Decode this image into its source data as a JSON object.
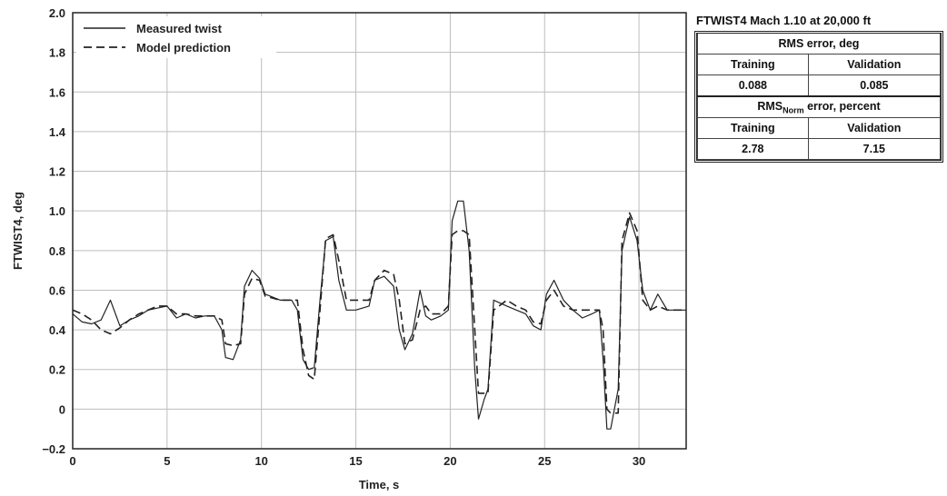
{
  "chart_data": {
    "type": "line",
    "xlabel": "Time, s",
    "ylabel": "FTWIST4, deg",
    "xlim": [
      0,
      32.5
    ],
    "ylim": [
      -0.2,
      2.0
    ],
    "x_ticks": [
      0,
      5,
      10,
      15,
      20,
      25,
      30
    ],
    "y_ticks": [
      2.0,
      1.8,
      1.6,
      1.4,
      1.2,
      1.0,
      0.8,
      0.6,
      0.4,
      0.2,
      0,
      -0.2
    ],
    "y_tick_labels": [
      "2.0",
      "1.8",
      "1.6",
      "1.4",
      "1.2",
      "1.0",
      "0.8",
      "0.6",
      "0.4",
      "0.2",
      "0",
      "−0.2"
    ],
    "x_tick_labels": [
      "0",
      "5",
      "10",
      "15",
      "20",
      "25",
      "30"
    ],
    "grid": true,
    "legend_position": "top-left",
    "series": [
      {
        "name": "Measured twist",
        "style": "solid",
        "color": "#222222",
        "x": [
          0,
          0.5,
          1.0,
          1.5,
          2.0,
          2.5,
          3.0,
          3.5,
          4.0,
          4.5,
          5.0,
          5.5,
          6.0,
          6.5,
          7.0,
          7.5,
          7.9,
          8.1,
          8.5,
          8.9,
          9.1,
          9.5,
          9.9,
          10.2,
          11.0,
          11.6,
          11.9,
          12.2,
          12.5,
          12.8,
          13.1,
          13.4,
          13.8,
          14.1,
          14.5,
          15.0,
          15.7,
          16.0,
          16.5,
          17.0,
          17.3,
          17.6,
          18.0,
          18.4,
          18.7,
          19.0,
          19.5,
          19.9,
          20.1,
          20.4,
          20.7,
          21.0,
          21.3,
          21.5,
          21.8,
          22.0,
          22.3,
          23.0,
          23.5,
          24.0,
          24.4,
          24.8,
          25.1,
          25.5,
          26.0,
          26.5,
          27.0,
          27.5,
          27.9,
          28.1,
          28.3,
          28.5,
          28.9,
          29.1,
          29.5,
          29.9,
          30.2,
          30.6,
          31.0,
          31.5,
          32.0,
          32.5
        ],
        "y": [
          0.48,
          0.44,
          0.43,
          0.45,
          0.55,
          0.42,
          0.45,
          0.47,
          0.5,
          0.51,
          0.52,
          0.46,
          0.48,
          0.46,
          0.47,
          0.47,
          0.4,
          0.26,
          0.25,
          0.35,
          0.62,
          0.7,
          0.66,
          0.58,
          0.55,
          0.55,
          0.5,
          0.25,
          0.2,
          0.21,
          0.55,
          0.85,
          0.87,
          0.65,
          0.5,
          0.5,
          0.52,
          0.65,
          0.67,
          0.62,
          0.4,
          0.3,
          0.38,
          0.6,
          0.47,
          0.45,
          0.47,
          0.5,
          0.95,
          1.05,
          1.05,
          0.8,
          0.2,
          -0.05,
          0.05,
          0.1,
          0.55,
          0.52,
          0.5,
          0.48,
          0.42,
          0.4,
          0.58,
          0.65,
          0.55,
          0.5,
          0.46,
          0.48,
          0.5,
          0.25,
          -0.1,
          -0.1,
          0.1,
          0.8,
          0.97,
          0.85,
          0.6,
          0.5,
          0.58,
          0.5,
          0.5,
          0.5
        ]
      },
      {
        "name": "Model prediction",
        "style": "dashed",
        "color": "#222222",
        "x": [
          0,
          0.5,
          1.0,
          1.5,
          2.0,
          2.5,
          3.0,
          3.5,
          4.0,
          4.5,
          5.0,
          5.5,
          6.0,
          6.5,
          7.0,
          7.5,
          7.9,
          8.1,
          8.5,
          8.9,
          9.1,
          9.5,
          9.9,
          10.2,
          11.0,
          11.6,
          11.9,
          12.2,
          12.5,
          12.8,
          13.1,
          13.4,
          13.8,
          14.1,
          14.5,
          15.0,
          15.7,
          16.0,
          16.5,
          17.0,
          17.3,
          17.6,
          18.0,
          18.4,
          18.7,
          19.0,
          19.5,
          19.9,
          20.1,
          20.4,
          20.7,
          21.0,
          21.3,
          21.5,
          21.8,
          22.0,
          22.3,
          23.0,
          23.5,
          24.0,
          24.4,
          24.8,
          25.1,
          25.5,
          26.0,
          26.5,
          27.0,
          27.5,
          27.9,
          28.1,
          28.3,
          28.5,
          28.9,
          29.1,
          29.5,
          29.9,
          30.2,
          30.6,
          31.0,
          31.5,
          32.0,
          32.5
        ],
        "y": [
          0.5,
          0.48,
          0.45,
          0.4,
          0.38,
          0.41,
          0.45,
          0.48,
          0.5,
          0.52,
          0.52,
          0.48,
          0.48,
          0.47,
          0.47,
          0.47,
          0.45,
          0.33,
          0.32,
          0.33,
          0.58,
          0.66,
          0.65,
          0.57,
          0.55,
          0.55,
          0.55,
          0.3,
          0.17,
          0.15,
          0.5,
          0.86,
          0.88,
          0.75,
          0.55,
          0.55,
          0.55,
          0.65,
          0.7,
          0.68,
          0.55,
          0.33,
          0.35,
          0.5,
          0.52,
          0.48,
          0.48,
          0.52,
          0.88,
          0.9,
          0.9,
          0.88,
          0.4,
          0.08,
          0.08,
          0.08,
          0.5,
          0.55,
          0.52,
          0.5,
          0.44,
          0.43,
          0.55,
          0.6,
          0.52,
          0.5,
          0.5,
          0.5,
          0.5,
          0.4,
          0.0,
          -0.02,
          -0.02,
          0.85,
          0.99,
          0.9,
          0.55,
          0.5,
          0.52,
          0.5,
          0.5,
          0.5
        ]
      }
    ]
  },
  "info": {
    "title": "FTWIST4  Mach 1.10 at 20,000 ft",
    "rms_header": "RMS error, deg",
    "training_label": "Training",
    "validation_label": "Validation",
    "rms_training": "0.088",
    "rms_validation": "0.085",
    "rmsnorm_prefix": "RMS",
    "rmsnorm_sub": "Norm",
    "rmsnorm_suffix": " error, percent",
    "training_label_2": "Training",
    "validation_label_2": "Validation",
    "rmsnorm_training": "2.78",
    "rmsnorm_validation": "7.15"
  }
}
